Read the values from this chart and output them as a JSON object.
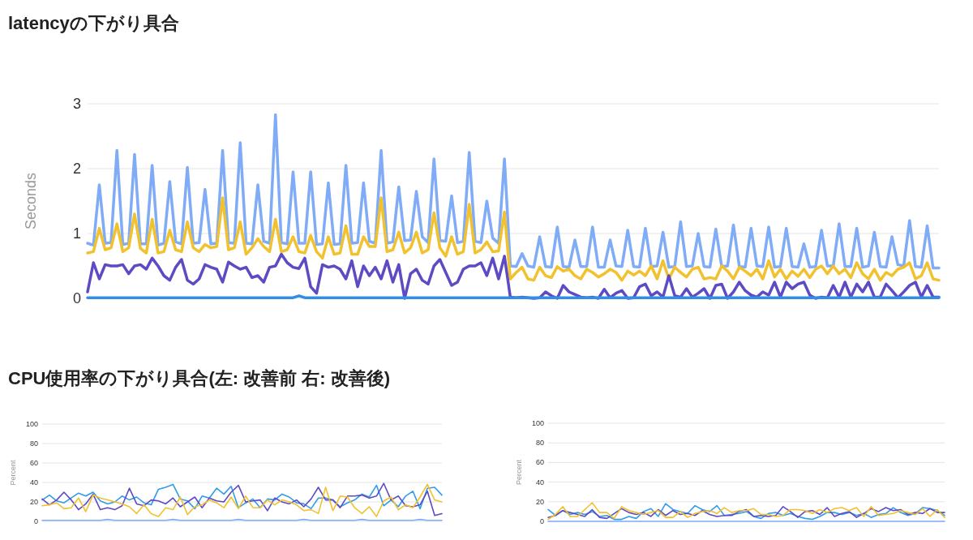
{
  "chart_data": [
    {
      "type": "line",
      "title": "latencyの下がり具合",
      "ylabel": "Seconds",
      "ylim": [
        0,
        3
      ],
      "yticks": [
        0,
        1,
        2,
        3
      ],
      "grid": "y",
      "tick_labels": "y",
      "categories": [
        null,
        null,
        null,
        null,
        null,
        null,
        null,
        null,
        null,
        null,
        null,
        null,
        null,
        null,
        null,
        null,
        null,
        null,
        null,
        null,
        null,
        null,
        null,
        null,
        null,
        null,
        null,
        null,
        null,
        null,
        null,
        null,
        null,
        null,
        null,
        null,
        null,
        null,
        null,
        null,
        null,
        null,
        null,
        null,
        null,
        null,
        null,
        null,
        null,
        null,
        null,
        null,
        null,
        null,
        null,
        null,
        null,
        null,
        null,
        null,
        null,
        null,
        null,
        null,
        null,
        null,
        null,
        null,
        null,
        null,
        null,
        null,
        null,
        null,
        null,
        null,
        null,
        null,
        null,
        null,
        null,
        null,
        null,
        null,
        null,
        null,
        null,
        null,
        null,
        null,
        null,
        null,
        null,
        null,
        null,
        null,
        null,
        null,
        null,
        null,
        null,
        null,
        null,
        null,
        null,
        null,
        null,
        null,
        null,
        null,
        null,
        null,
        null,
        null,
        null,
        null,
        null,
        null,
        null,
        null,
        null,
        null,
        null,
        null,
        null,
        null,
        null,
        null,
        null,
        null,
        null,
        null,
        null,
        null,
        null,
        null,
        null,
        null,
        null,
        null,
        null,
        null,
        null,
        null,
        null,
        null
      ],
      "series": [
        {
          "color": "#7fabf7",
          "values": [
            0.85,
            0.82,
            1.75,
            0.85,
            0.86,
            2.28,
            0.83,
            0.85,
            2.22,
            0.84,
            0.84,
            2.05,
            0.82,
            0.85,
            1.8,
            0.87,
            0.84,
            2.02,
            0.85,
            0.86,
            1.68,
            0.84,
            0.85,
            2.28,
            0.86,
            0.85,
            2.4,
            0.85,
            0.84,
            1.75,
            0.88,
            0.85,
            2.83,
            0.86,
            0.84,
            1.95,
            0.85,
            0.85,
            1.95,
            0.83,
            0.84,
            1.78,
            0.83,
            0.84,
            2.05,
            0.85,
            0.86,
            1.78,
            0.88,
            0.85,
            2.28,
            0.85,
            0.87,
            1.72,
            0.89,
            0.9,
            1.65,
            0.95,
            0.86,
            2.15,
            0.89,
            0.88,
            1.58,
            0.86,
            0.88,
            2.25,
            0.88,
            0.86,
            1.5,
            0.93,
            0.85,
            2.15,
            0.5,
            0.49,
            0.69,
            0.5,
            0.48,
            0.95,
            0.49,
            0.48,
            1.1,
            0.49,
            0.48,
            0.9,
            0.49,
            0.49,
            1.1,
            0.48,
            0.48,
            0.9,
            0.5,
            0.49,
            1.05,
            0.49,
            0.48,
            1.08,
            0.49,
            0.5,
            1.02,
            0.48,
            0.49,
            1.18,
            0.49,
            0.5,
            1.0,
            0.49,
            0.48,
            1.07,
            0.49,
            0.5,
            1.13,
            0.49,
            0.48,
            1.08,
            0.5,
            0.49,
            1.1,
            0.48,
            0.49,
            1.08,
            0.49,
            0.48,
            0.84,
            0.48,
            0.49,
            1.05,
            0.5,
            0.5,
            1.15,
            0.49,
            0.49,
            1.08,
            0.48,
            0.5,
            1.02,
            0.49,
            0.48,
            0.95,
            0.52,
            0.5,
            1.2,
            0.49,
            0.48,
            1.12,
            0.47,
            0.47
          ]
        },
        {
          "color": "#f2c12e",
          "values": [
            0.7,
            0.72,
            1.08,
            0.75,
            0.78,
            1.15,
            0.72,
            0.78,
            1.3,
            0.77,
            0.7,
            1.22,
            0.7,
            0.72,
            1.05,
            0.75,
            0.72,
            1.18,
            0.78,
            0.72,
            0.83,
            0.78,
            0.8,
            1.55,
            0.75,
            0.78,
            1.18,
            0.68,
            0.78,
            0.92,
            0.8,
            0.72,
            1.22,
            0.72,
            0.75,
            0.95,
            0.72,
            0.7,
            0.97,
            0.72,
            0.62,
            0.95,
            0.68,
            0.7,
            1.12,
            0.68,
            0.68,
            0.95,
            0.8,
            0.8,
            1.55,
            0.72,
            0.75,
            1.02,
            0.7,
            0.78,
            1.02,
            0.7,
            0.75,
            1.32,
            0.78,
            0.65,
            0.95,
            0.68,
            0.72,
            1.45,
            0.7,
            0.75,
            0.87,
            0.72,
            0.73,
            1.33,
            0.3,
            0.4,
            0.48,
            0.3,
            0.28,
            0.48,
            0.35,
            0.32,
            0.49,
            0.42,
            0.45,
            0.35,
            0.3,
            0.45,
            0.4,
            0.33,
            0.38,
            0.45,
            0.4,
            0.28,
            0.42,
            0.36,
            0.42,
            0.35,
            0.5,
            0.3,
            0.58,
            0.3,
            0.48,
            0.4,
            0.33,
            0.45,
            0.48,
            0.3,
            0.32,
            0.3,
            0.5,
            0.42,
            0.3,
            0.48,
            0.42,
            0.35,
            0.45,
            0.3,
            0.58,
            0.33,
            0.45,
            0.3,
            0.42,
            0.34,
            0.45,
            0.32,
            0.45,
            0.5,
            0.38,
            0.5,
            0.38,
            0.45,
            0.32,
            0.55,
            0.38,
            0.3,
            0.45,
            0.28,
            0.4,
            0.35,
            0.45,
            0.48,
            0.55,
            0.3,
            0.35,
            0.55,
            0.3,
            0.28
          ]
        },
        {
          "color": "#5e4bc4",
          "values": [
            0.1,
            0.55,
            0.3,
            0.52,
            0.5,
            0.5,
            0.52,
            0.38,
            0.5,
            0.52,
            0.45,
            0.62,
            0.5,
            0.35,
            0.28,
            0.48,
            0.6,
            0.28,
            0.22,
            0.3,
            0.52,
            0.48,
            0.45,
            0.25,
            0.56,
            0.5,
            0.45,
            0.48,
            0.32,
            0.35,
            0.25,
            0.48,
            0.5,
            0.68,
            0.55,
            0.48,
            0.46,
            0.62,
            0.18,
            0.08,
            0.52,
            0.48,
            0.5,
            0.45,
            0.3,
            0.58,
            0.18,
            0.5,
            0.35,
            0.48,
            0.3,
            0.58,
            0.25,
            0.52,
            0.0,
            0.38,
            0.45,
            0.28,
            0.22,
            0.5,
            0.6,
            0.4,
            0.2,
            0.25,
            0.45,
            0.5,
            0.5,
            0.55,
            0.35,
            0.62,
            0.3,
            0.65,
            0.02,
            0.01,
            0.02,
            0.01,
            0.0,
            0.01,
            0.1,
            0.04,
            0.0,
            0.2,
            0.1,
            0.06,
            0.02,
            0.01,
            0.02,
            0.0,
            0.14,
            0.01,
            0.08,
            0.12,
            0.0,
            0.01,
            0.18,
            0.22,
            0.04,
            0.1,
            0.02,
            0.35,
            0.04,
            0.02,
            0.15,
            0.02,
            0.08,
            0.15,
            0.0,
            0.2,
            0.22,
            0.0,
            0.1,
            0.25,
            0.12,
            0.05,
            0.02,
            0.1,
            0.05,
            0.25,
            0.02,
            0.25,
            0.15,
            0.22,
            0.25,
            0.05,
            0.0,
            0.02,
            0.01,
            0.2,
            0.02,
            0.25,
            0.02,
            0.22,
            0.1,
            0.25,
            0.02,
            0.02,
            0.22,
            0.12,
            0.01,
            0.1,
            0.2,
            0.25,
            0.02,
            0.2,
            0.02,
            0.02
          ]
        },
        {
          "color": "#2f8fe8",
          "values": [
            0.01,
            0.01,
            0.01,
            0.01,
            0.01,
            0.01,
            0.01,
            0.01,
            0.01,
            0.01,
            0.01,
            0.01,
            0.01,
            0.01,
            0.01,
            0.01,
            0.01,
            0.01,
            0.01,
            0.01,
            0.01,
            0.01,
            0.01,
            0.01,
            0.01,
            0.01,
            0.01,
            0.01,
            0.01,
            0.01,
            0.01,
            0.01,
            0.01,
            0.01,
            0.01,
            0.01,
            0.04,
            0.01,
            0.01,
            0.01,
            0.01,
            0.01,
            0.01,
            0.01,
            0.01,
            0.01,
            0.01,
            0.01,
            0.01,
            0.01,
            0.01,
            0.01,
            0.01,
            0.01,
            0.01,
            0.01,
            0.01,
            0.01,
            0.01,
            0.01,
            0.01,
            0.01,
            0.01,
            0.01,
            0.01,
            0.01,
            0.01,
            0.01,
            0.01,
            0.01,
            0.01,
            0.01,
            0.01,
            0.01,
            0.01,
            0.01,
            0.01,
            0.01,
            0.01,
            0.01,
            0.01,
            0.01,
            0.01,
            0.01,
            0.01,
            0.01,
            0.01,
            0.01,
            0.01,
            0.01,
            0.01,
            0.01,
            0.01,
            0.01,
            0.01,
            0.01,
            0.01,
            0.01,
            0.01,
            0.01,
            0.01,
            0.01,
            0.01,
            0.01,
            0.01,
            0.01,
            0.01,
            0.01,
            0.01,
            0.01,
            0.01,
            0.01,
            0.01,
            0.01,
            0.01,
            0.01,
            0.01,
            0.01,
            0.01,
            0.01,
            0.01,
            0.01,
            0.01,
            0.01,
            0.01,
            0.01,
            0.01,
            0.01,
            0.01,
            0.01,
            0.01,
            0.01,
            0.01,
            0.01,
            0.01,
            0.01,
            0.01,
            0.01,
            0.01,
            0.01,
            0.01,
            0.01,
            0.01,
            0.01,
            0.01,
            0.01
          ]
        }
      ]
    },
    {
      "type": "line",
      "title": "CPU使用率の下がり具合(左: 改善前 右: 改善後)",
      "ylabel": "Percent",
      "ylim": [
        0,
        100
      ],
      "yticks": [
        0,
        20,
        40,
        60,
        80,
        100
      ],
      "grid": "y",
      "tick_labels": "y",
      "categories": [
        null,
        null,
        null,
        null,
        null,
        null,
        null,
        null,
        null,
        null,
        null,
        null,
        null,
        null,
        null,
        null,
        null,
        null,
        null,
        null,
        null,
        null,
        null,
        null,
        null,
        null,
        null,
        null,
        null,
        null,
        null,
        null,
        null,
        null,
        null,
        null,
        null,
        null,
        null,
        null,
        null,
        null,
        null,
        null,
        null,
        null,
        null,
        null,
        null,
        null,
        null,
        null,
        null,
        null,
        null,
        null
      ],
      "series": [
        {
          "color": "#7fabf7",
          "values": [
            1,
            1,
            1,
            1,
            1,
            1,
            1,
            1,
            1,
            2,
            1,
            1,
            1,
            1,
            1,
            1,
            1,
            1,
            2,
            1,
            1,
            1,
            1,
            1,
            1,
            1,
            1,
            2,
            1,
            1,
            1,
            1,
            1,
            1,
            1,
            1,
            2,
            1,
            1,
            1,
            1,
            1,
            1,
            1,
            2,
            1,
            1,
            1,
            1,
            1,
            1,
            1,
            2,
            1,
            1,
            1
          ]
        },
        {
          "color": "#2f9cec",
          "values": [
            22,
            27,
            21,
            19,
            24,
            29,
            26,
            30,
            21,
            18,
            20,
            26,
            22,
            25,
            19,
            17,
            33,
            35,
            38,
            23,
            21,
            13,
            26,
            24,
            34,
            28,
            36,
            14,
            19,
            23,
            14,
            23,
            22,
            28,
            25,
            19,
            18,
            13,
            24,
            24,
            22,
            15,
            19,
            22,
            28,
            25,
            37,
            16,
            22,
            15,
            26,
            31,
            13,
            34,
            35,
            27
          ]
        },
        {
          "color": "#5e4bc4",
          "values": [
            23,
            17,
            22,
            30,
            22,
            12,
            18,
            28,
            12,
            14,
            12,
            16,
            34,
            18,
            16,
            22,
            21,
            18,
            24,
            15,
            20,
            25,
            14,
            24,
            21,
            20,
            30,
            37,
            20,
            21,
            22,
            11,
            24,
            20,
            18,
            22,
            15,
            23,
            35,
            22,
            22,
            14,
            26,
            26,
            27,
            24,
            26,
            39,
            22,
            26,
            16,
            15,
            17,
            31,
            6,
            8
          ]
        },
        {
          "color": "#f2c12e",
          "values": [
            16,
            17,
            19,
            13,
            14,
            24,
            10,
            27,
            24,
            22,
            20,
            18,
            15,
            8,
            17,
            8,
            5,
            14,
            12,
            25,
            7,
            15,
            17,
            22,
            19,
            14,
            25,
            13,
            26,
            14,
            14,
            22,
            17,
            22,
            20,
            17,
            11,
            12,
            8,
            35,
            11,
            26,
            25,
            14,
            8,
            15,
            5,
            21,
            25,
            12,
            17,
            14,
            25,
            38,
            22,
            20
          ]
        }
      ]
    },
    {
      "type": "line",
      "ylabel": "Percent",
      "ylim": [
        0,
        100
      ],
      "yticks": [
        0,
        20,
        40,
        60,
        80,
        100
      ],
      "grid": "y",
      "tick_labels": "y",
      "categories": [
        null,
        null,
        null,
        null,
        null,
        null,
        null,
        null,
        null,
        null,
        null,
        null,
        null,
        null,
        null,
        null,
        null,
        null,
        null,
        null,
        null,
        null,
        null,
        null,
        null,
        null,
        null,
        null,
        null,
        null,
        null,
        null,
        null,
        null,
        null,
        null,
        null,
        null,
        null,
        null,
        null,
        null,
        null,
        null,
        null,
        null,
        null,
        null,
        null,
        null,
        null,
        null,
        null,
        null,
        null
      ],
      "series": [
        {
          "color": "#7fabf7",
          "values": [
            0,
            0,
            0,
            0,
            0,
            0,
            0,
            0,
            0,
            0,
            0,
            0,
            0,
            0,
            0,
            0,
            0,
            0,
            0,
            0,
            0,
            0,
            0,
            0,
            0,
            0,
            0,
            0,
            0,
            0,
            0,
            0,
            0,
            0,
            0,
            0,
            0,
            0,
            0,
            0,
            0,
            0,
            0,
            0,
            0,
            0,
            0,
            0,
            0,
            0,
            0,
            0,
            0,
            0,
            0
          ]
        },
        {
          "color": "#2f9cec",
          "values": [
            12,
            6,
            11,
            7,
            9,
            7,
            10,
            5,
            6,
            2,
            2,
            5,
            3,
            10,
            13,
            5,
            18,
            12,
            10,
            8,
            16,
            12,
            10,
            16,
            6,
            7,
            8,
            10,
            5,
            3,
            8,
            9,
            6,
            8,
            5,
            3,
            2,
            5,
            9,
            9,
            7,
            9,
            6,
            8,
            4,
            7,
            8,
            14,
            9,
            6,
            8,
            14,
            13,
            11,
            6
          ]
        },
        {
          "color": "#5e4bc4",
          "values": [
            4,
            6,
            11,
            9,
            7,
            5,
            12,
            4,
            3,
            8,
            13,
            9,
            7,
            9,
            5,
            12,
            6,
            11,
            7,
            8,
            6,
            11,
            7,
            5,
            6,
            6,
            10,
            12,
            5,
            6,
            5,
            6,
            15,
            10,
            4,
            10,
            11,
            7,
            14,
            5,
            8,
            10,
            4,
            8,
            13,
            10,
            14,
            11,
            12,
            7,
            9,
            8,
            13,
            9,
            9
          ]
        },
        {
          "color": "#f2c12e",
          "values": [
            2,
            7,
            15,
            5,
            5,
            12,
            19,
            9,
            9,
            3,
            15,
            11,
            9,
            7,
            9,
            11,
            4,
            4,
            10,
            4,
            8,
            10,
            11,
            8,
            14,
            9,
            11,
            11,
            13,
            7,
            7,
            5,
            6,
            12,
            12,
            11,
            8,
            12,
            9,
            13,
            14,
            11,
            14,
            5,
            15,
            6,
            7,
            8,
            11,
            9,
            7,
            13,
            5,
            12,
            4
          ]
        }
      ]
    }
  ]
}
